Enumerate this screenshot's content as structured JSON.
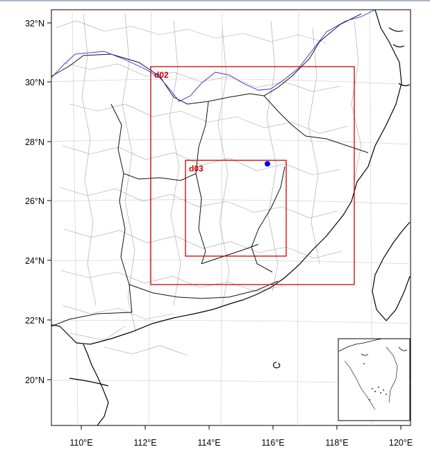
{
  "map": {
    "lat_labels": [
      "32°N",
      "30°N",
      "28°N",
      "26°N",
      "24°N",
      "22°N",
      "20°N"
    ],
    "lon_labels": [
      "110°E",
      "112°E",
      "114°E",
      "116°E",
      "118°E",
      "120°E"
    ],
    "domains": [
      {
        "id": "d02",
        "label": "d02"
      },
      {
        "id": "d03",
        "label": "d03"
      }
    ],
    "marker": {
      "kind": "observation-site",
      "color": "#0000ff"
    },
    "colors": {
      "domain_box": "#cc0000",
      "province_border": "#000000",
      "county_border": "#9a9a9a",
      "river": "#2b2bd6",
      "graticule": "#d0d0d0",
      "coastline": "#000000"
    },
    "inset": {
      "kind": "south-china-sea-islands"
    }
  }
}
